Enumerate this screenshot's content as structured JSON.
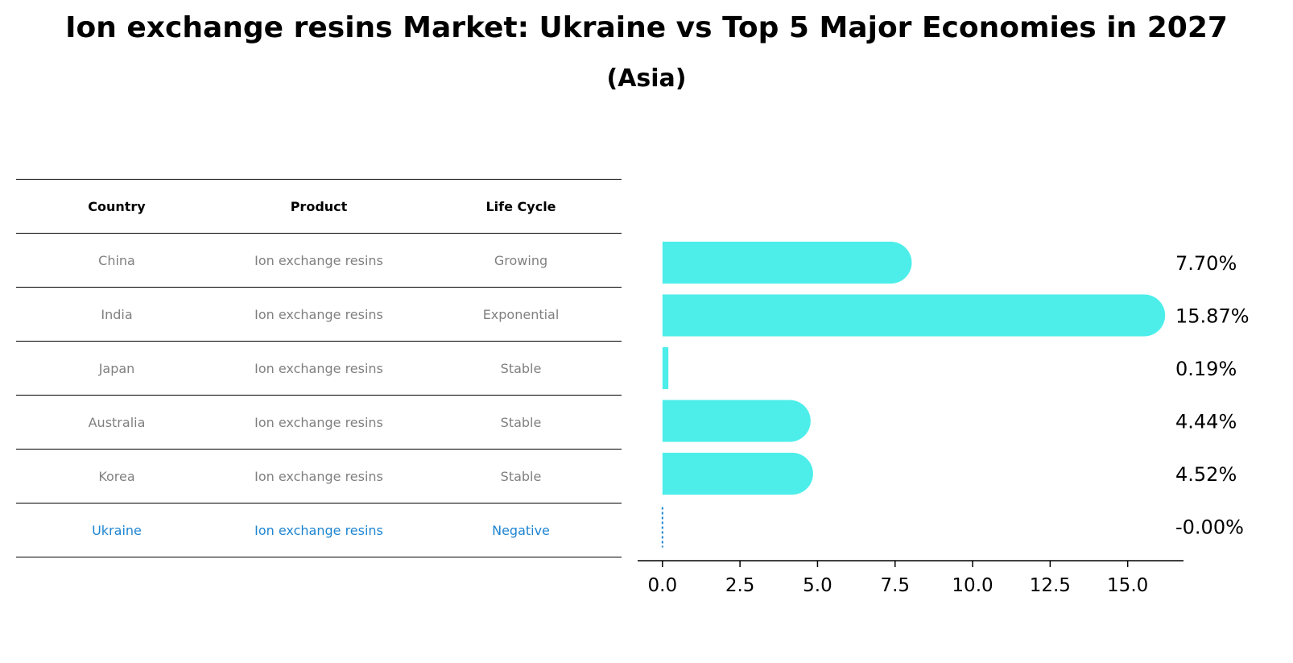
{
  "title": "Ion exchange resins Market: Ukraine vs Top 5 Major Economies in 2027",
  "subtitle": "(Asia)",
  "table": {
    "headers": [
      "Country",
      "Product",
      "Life Cycle"
    ],
    "rows": [
      {
        "country": "China",
        "product": "Ion exchange resins",
        "life_cycle": "Growing"
      },
      {
        "country": "India",
        "product": "Ion exchange resins",
        "life_cycle": "Exponential"
      },
      {
        "country": "Japan",
        "product": "Ion exchange resins",
        "life_cycle": "Stable"
      },
      {
        "country": "Australia",
        "product": "Ion exchange resins",
        "life_cycle": "Stable"
      },
      {
        "country": "Korea",
        "product": "Ion exchange resins",
        "life_cycle": "Stable"
      },
      {
        "country": "Ukraine",
        "product": "Ion exchange resins",
        "life_cycle": "Negative"
      }
    ]
  },
  "colors": {
    "bar": "#4deeea",
    "highlight": "#1f85d1",
    "muted": "#808080"
  },
  "chart_data": {
    "type": "bar",
    "orientation": "horizontal",
    "categories": [
      "China",
      "India",
      "Japan",
      "Australia",
      "Korea",
      "Ukraine"
    ],
    "values": [
      7.7,
      15.87,
      0.19,
      4.44,
      4.52,
      -0.0
    ],
    "value_labels": [
      "7.70%",
      "15.87%",
      "0.19%",
      "4.44%",
      "4.52%",
      "-0.00%"
    ],
    "xlim": [
      -0.8,
      16.8
    ],
    "xticks": [
      0.0,
      2.5,
      5.0,
      7.5,
      10.0,
      12.5,
      15.0
    ],
    "xtick_labels": [
      "0.0",
      "2.5",
      "5.0",
      "7.5",
      "10.0",
      "12.5",
      "15.0"
    ],
    "grid": false
  }
}
